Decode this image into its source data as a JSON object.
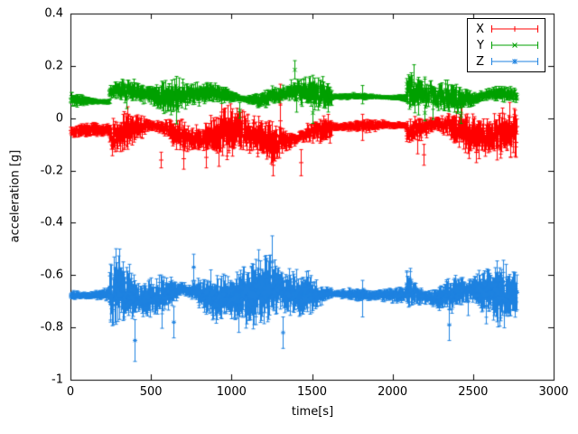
{
  "figure": {
    "background": "#ffffff"
  },
  "chart_data": {
    "type": "scatter",
    "style": "yerrorbars",
    "title": "",
    "xlabel": "time[s]",
    "ylabel": "acceleration [g]",
    "xlim": [
      0,
      3000
    ],
    "ylim": [
      -1,
      0.4
    ],
    "xticks": [
      0,
      500,
      1000,
      1500,
      2000,
      2500,
      3000
    ],
    "xtick_labels": [
      "0",
      "500",
      "1000",
      "1500",
      "2000",
      "2500",
      "3000"
    ],
    "yticks": [
      -1,
      -0.8,
      -0.6,
      -0.4,
      -0.2,
      0,
      0.2,
      0.4
    ],
    "ytick_labels": [
      "-1",
      "-0.8",
      "-0.6",
      "-0.4",
      "-0.2",
      "0",
      "0.2",
      "0.4"
    ],
    "grid": false,
    "legend": {
      "position": "top-right",
      "border": true,
      "order": [
        "X",
        "Y",
        "Z"
      ]
    },
    "sample_interval_s": 3,
    "series": [
      {
        "name": "X",
        "color": "#ff0000",
        "marker": "plus",
        "segments": [
          {
            "t0": 0,
            "t1": 240,
            "mean": -0.05,
            "jitter": 0.007,
            "err": 0.012,
            "wander": 0.004
          },
          {
            "t0": 240,
            "t1": 1620,
            "mean": -0.06,
            "jitter": 0.028,
            "err": 0.035,
            "wander": 0.022
          },
          {
            "t0": 1620,
            "t1": 2085,
            "mean": -0.03,
            "jitter": 0.005,
            "err": 0.009,
            "wander": 0.003
          },
          {
            "t0": 2085,
            "t1": 2770,
            "mean": -0.05,
            "jitter": 0.028,
            "err": 0.033,
            "wander": 0.02
          }
        ],
        "spikes": [
          {
            "t": 560,
            "y": -0.16,
            "err": 0.03
          },
          {
            "t": 700,
            "y": -0.155,
            "err": 0.04
          },
          {
            "t": 840,
            "y": -0.15,
            "err": 0.04
          },
          {
            "t": 1255,
            "y": -0.18,
            "err": 0.04
          },
          {
            "t": 1300,
            "y": 0.09,
            "err": 0.04
          },
          {
            "t": 1430,
            "y": -0.17,
            "err": 0.05
          },
          {
            "t": 1810,
            "y": -0.035,
            "err": 0.05
          },
          {
            "t": 2190,
            "y": -0.14,
            "err": 0.04
          },
          {
            "t": 2520,
            "y": -0.13,
            "err": 0.04
          }
        ]
      },
      {
        "name": "Y",
        "color": "#00a000",
        "marker": "cross",
        "segments": [
          {
            "t0": 0,
            "t1": 240,
            "mean": 0.065,
            "jitter": 0.006,
            "err": 0.012,
            "wander": 0.004
          },
          {
            "t0": 240,
            "t1": 1620,
            "mean": 0.09,
            "jitter": 0.017,
            "err": 0.022,
            "wander": 0.014
          },
          {
            "t0": 1620,
            "t1": 2085,
            "mean": 0.08,
            "jitter": 0.005,
            "err": 0.009,
            "wander": 0.003
          },
          {
            "t0": 2085,
            "t1": 2770,
            "mean": 0.085,
            "jitter": 0.02,
            "err": 0.024,
            "wander": 0.015
          }
        ],
        "spikes": [
          {
            "t": 1050,
            "y": 0.03,
            "err": 0.03
          },
          {
            "t": 1390,
            "y": 0.185,
            "err": 0.035
          },
          {
            "t": 1500,
            "y": 0.02,
            "err": 0.04
          },
          {
            "t": 1810,
            "y": 0.09,
            "err": 0.035
          },
          {
            "t": 2200,
            "y": 0.02,
            "err": 0.03
          },
          {
            "t": 2420,
            "y": 0.01,
            "err": 0.03
          }
        ]
      },
      {
        "name": "Z",
        "color": "#1e82e0",
        "marker": "star",
        "segments": [
          {
            "t0": 0,
            "t1": 240,
            "mean": -0.675,
            "jitter": 0.007,
            "err": 0.012,
            "wander": 0.004
          },
          {
            "t0": 240,
            "t1": 1620,
            "mean": -0.67,
            "jitter": 0.032,
            "err": 0.05,
            "wander": 0.02
          },
          {
            "t0": 1620,
            "t1": 2085,
            "mean": -0.675,
            "jitter": 0.006,
            "err": 0.011,
            "wander": 0.003
          },
          {
            "t0": 2085,
            "t1": 2770,
            "mean": -0.665,
            "jitter": 0.032,
            "err": 0.045,
            "wander": 0.016
          }
        ],
        "spikes": [
          {
            "t": 400,
            "y": -0.85,
            "err": 0.08
          },
          {
            "t": 640,
            "y": -0.78,
            "err": 0.06
          },
          {
            "t": 760,
            "y": -0.57,
            "err": 0.05
          },
          {
            "t": 1250,
            "y": -0.55,
            "err": 0.1
          },
          {
            "t": 1320,
            "y": -0.82,
            "err": 0.06
          },
          {
            "t": 1810,
            "y": -0.69,
            "err": 0.07
          },
          {
            "t": 2350,
            "y": -0.79,
            "err": 0.06
          }
        ]
      }
    ]
  }
}
